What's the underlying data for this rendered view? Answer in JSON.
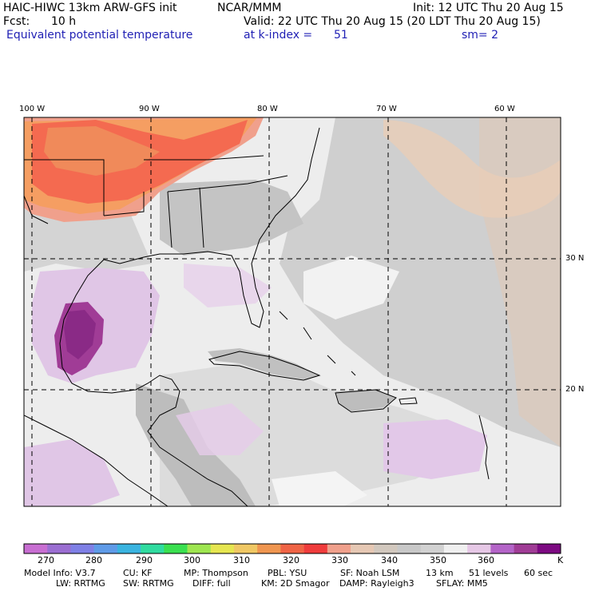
{
  "header": {
    "model_title": "HAIC-HIWC 13km ARW-GFS init",
    "org": "NCAR/MMM",
    "init": "Init: 12 UTC Thu 20 Aug 15",
    "fcst_label": "Fcst:",
    "fcst_value": "10 h",
    "valid": "Valid: 22 UTC Thu 20 Aug 15 (20 LDT Thu 20 Aug 15)",
    "field": "Equivalent potential temperature",
    "level": "at k-index =",
    "level_value": "51",
    "smoothing": "sm= 2"
  },
  "map": {
    "lon_labels": [
      "100 W",
      "90 W",
      "80 W",
      "70 W",
      "60 W"
    ],
    "lat_labels": [
      "30 N",
      "20 N"
    ],
    "background_color": "#ededed"
  },
  "colorbar": {
    "colors": [
      "#c86ed2",
      "#9b6ed2",
      "#7f80e6",
      "#5f9be8",
      "#3ab4e0",
      "#30dca0",
      "#3ae050",
      "#9ee650",
      "#e6e650",
      "#f0c864",
      "#f09650",
      "#f06446",
      "#f03c3c",
      "#f0a08c",
      "#e6c8b4",
      "#d2c8be",
      "#c8c8c8",
      "#d2d2d2",
      "#f0f0f0",
      "#e6c8e6",
      "#b464c8",
      "#a03c96",
      "#7d0a82"
    ],
    "labels": [
      "270",
      "280",
      "290",
      "300",
      "310",
      "320",
      "330",
      "340",
      "350",
      "360"
    ],
    "unit": "K"
  },
  "footer": {
    "line1": [
      "Model Info: V3.7",
      "CU: KF",
      "MP: Thompson",
      "PBL: YSU",
      "SF: Noah LSM",
      "13 km",
      "51 levels",
      "60 sec"
    ],
    "line2": [
      "LW: RRTMG",
      "SW: RRTMG",
      "DIFF: full",
      "KM: 2D Smagor",
      "DAMP: Rayleigh3",
      "SFLAY: MM5"
    ]
  }
}
